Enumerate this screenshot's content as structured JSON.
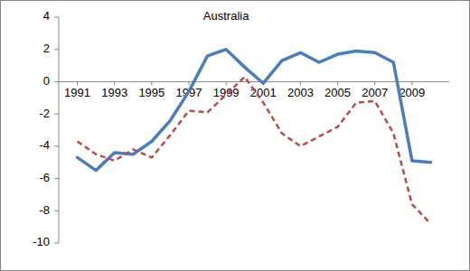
{
  "chart_data": {
    "type": "line",
    "x": [
      1991,
      1992,
      1993,
      1994,
      1995,
      1996,
      1997,
      1998,
      1999,
      2000,
      2001,
      2002,
      2003,
      2004,
      2005,
      2006,
      2007,
      2008,
      2009,
      2010
    ],
    "series": [
      {
        "color": "#4a7ebb",
        "line_style": "solid",
        "values": [
          -4.7,
          -5.5,
          -4.4,
          -4.5,
          -3.7,
          -2.4,
          -0.6,
          1.6,
          2.0,
          0.9,
          -0.1,
          1.3,
          1.8,
          1.2,
          1.7,
          1.9,
          1.8,
          1.2,
          -4.9,
          -5.0
        ]
      },
      {
        "color": "#be4b48",
        "line_style": "dashed",
        "values": [
          -3.7,
          -4.5,
          -4.9,
          -4.2,
          -4.7,
          -3.3,
          -1.8,
          -1.9,
          -0.8,
          0.3,
          -1.3,
          -3.2,
          -4.0,
          -3.4,
          -2.8,
          -1.3,
          -1.2,
          -3.2,
          -7.6,
          -8.8
        ]
      }
    ],
    "annotations": [
      {
        "text": "Australia",
        "x": 1999,
        "y": 4
      }
    ],
    "xlim": [
      1990,
      2011
    ],
    "xticks": [
      1991,
      1993,
      1995,
      1997,
      1999,
      2001,
      2003,
      2005,
      2007,
      2009
    ],
    "ylim": [
      -10,
      4
    ],
    "yticks": [
      -10,
      -8,
      -6,
      -4,
      -2,
      0,
      2,
      4
    ],
    "grid": false
  }
}
